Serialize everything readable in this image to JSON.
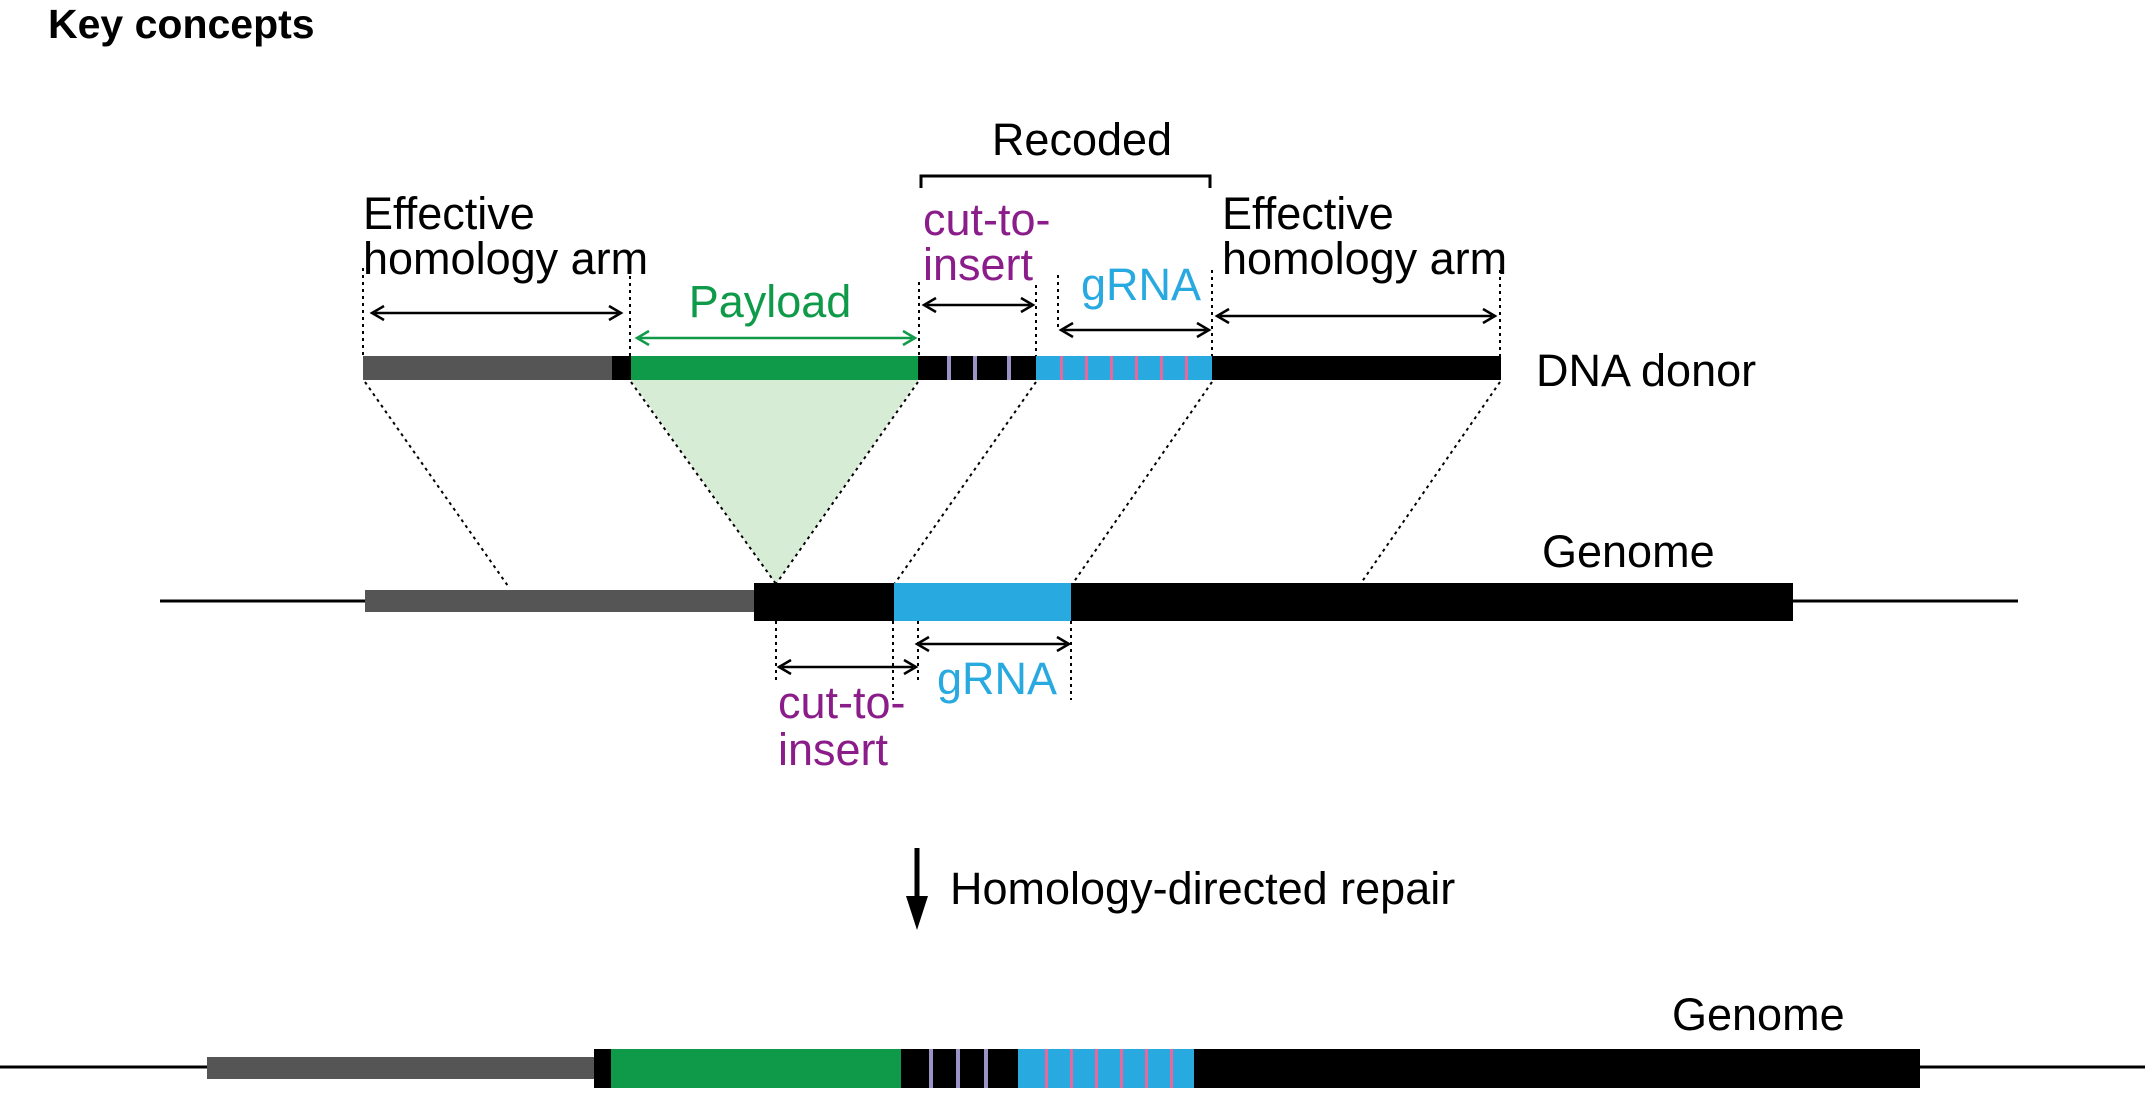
{
  "title": "Key concepts",
  "colors": {
    "black": "#000000",
    "gray": "#555555",
    "payload_green": "#0f9a4a",
    "payload_fill": "#d6ecd4",
    "grna_blue": "#28aae1",
    "purple_text": "#8b1d8a",
    "lavender_stripe": "#9b93c8",
    "pink_stripe": "#e9679a"
  },
  "labels": {
    "effective_homology_arm_left": [
      "Effective",
      "homology arm"
    ],
    "effective_homology_arm_right": [
      "Effective",
      "homology arm"
    ],
    "payload": "Payload",
    "recoded": "Recoded",
    "cut_to_insert_donor": [
      "cut-to-",
      "insert"
    ],
    "grna_donor": "gRNA",
    "dna_donor": "DNA donor",
    "genome_top": "Genome",
    "cut_to_insert_genome": [
      "cut-to-",
      "insert"
    ],
    "grna_genome": "gRNA",
    "repair_step": "Homology-directed repair",
    "genome_bottom": "Genome"
  },
  "icons": {
    "down_arrow": "down-arrow-icon",
    "double_arrow": "double-headed-arrow-icon"
  }
}
